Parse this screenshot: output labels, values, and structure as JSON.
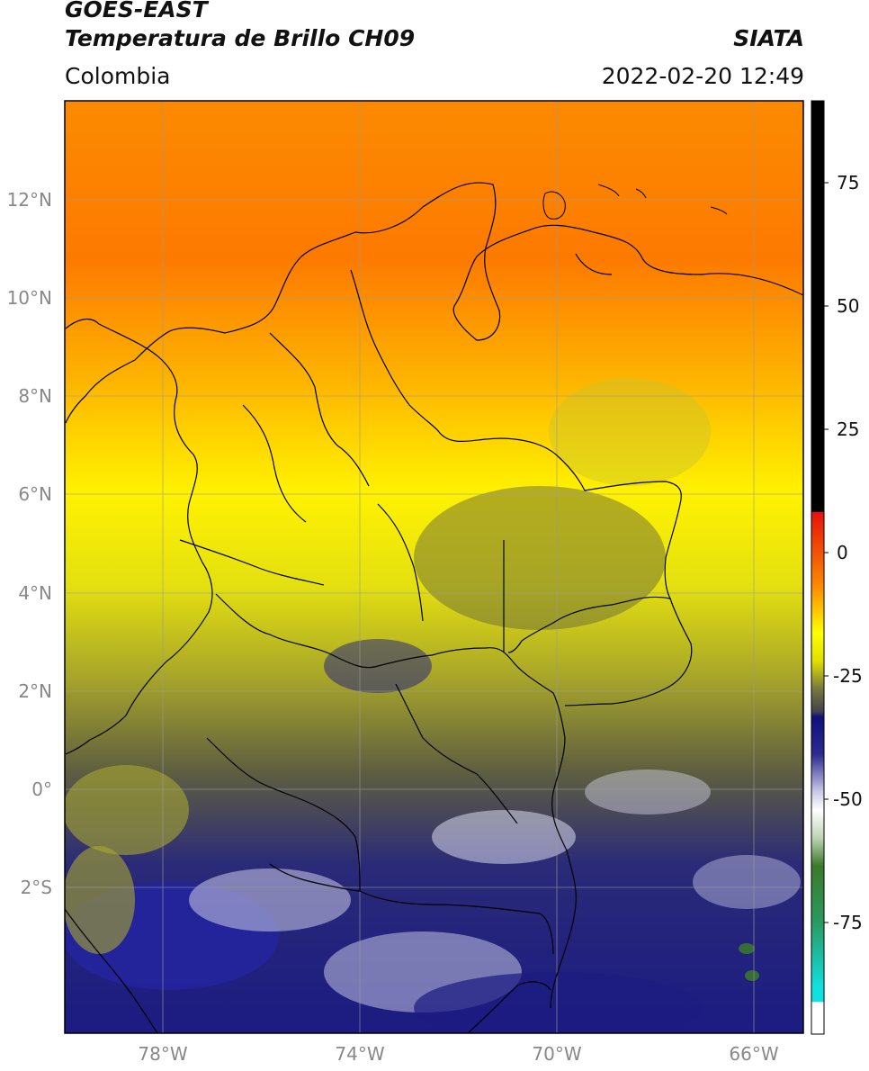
{
  "header": {
    "satellite": "GOES-EAST",
    "product": "Temperatura de Brillo CH09",
    "region": "Colombia",
    "agency": "SIATA",
    "datetime": "2022-02-20 12:49"
  },
  "map": {
    "lon_range": [
      -80,
      -65
    ],
    "lat_range": [
      -5,
      14
    ],
    "lat_ticks": [
      "12°N",
      "10°N",
      "8°N",
      "6°N",
      "4°N",
      "2°N",
      "0°",
      "2°S"
    ],
    "lon_ticks": [
      "78°W",
      "74°W",
      "70°W",
      "66°W"
    ],
    "grid": true
  },
  "colorbar": {
    "ticks": [
      "75",
      "50",
      "25",
      "0",
      "-25",
      "-50",
      "-75"
    ],
    "colors": {
      "black": "#000000",
      "red": "#e8120c",
      "orange": "#fb8a00",
      "yellow": "#ffff00",
      "olive": "#5e5e40",
      "navy": "#1a1a80",
      "white": "#ffffff",
      "green": "#3a7a2a",
      "cyan": "#10e0e0"
    }
  }
}
